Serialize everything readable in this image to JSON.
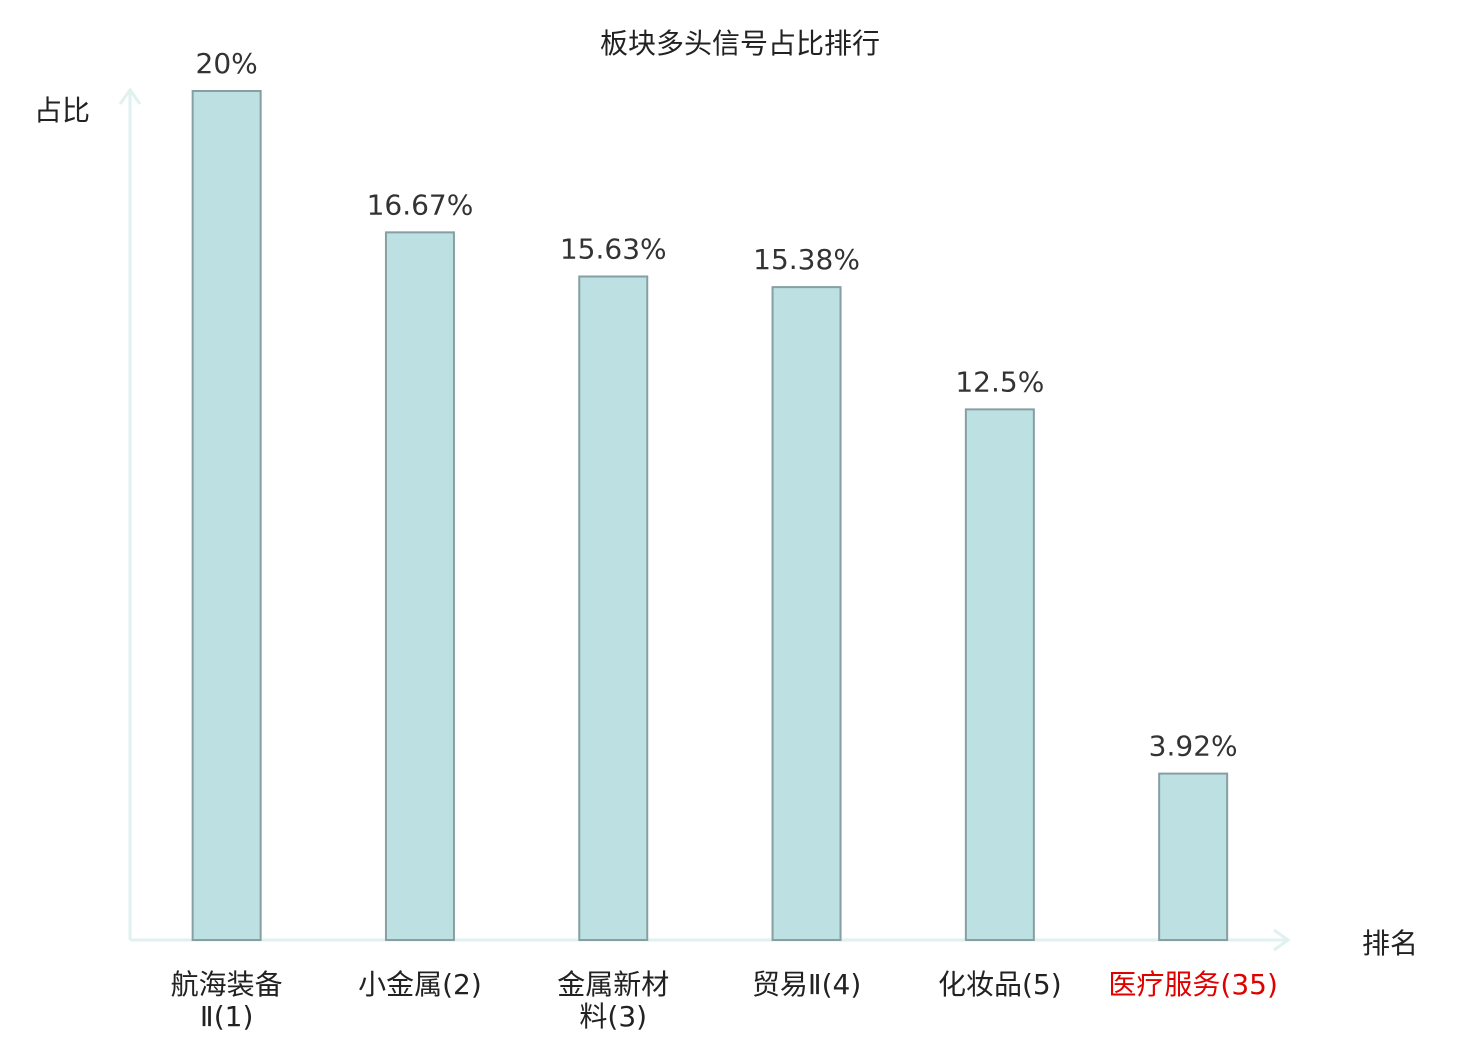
{
  "chart_data": {
    "type": "bar",
    "title": "板块多头信号占比排行",
    "ylabel": "占比",
    "xlabel": "排名",
    "categories": [
      [
        "航海装备",
        "Ⅱ(1)"
      ],
      [
        "小金属(2)"
      ],
      [
        "金属新材",
        "料(3)"
      ],
      [
        "贸易Ⅱ(4)"
      ],
      [
        "化妆品(5)"
      ],
      [
        "医疗服务(35)"
      ]
    ],
    "values": [
      20,
      16.67,
      15.63,
      15.38,
      12.5,
      3.92
    ],
    "value_labels": [
      "20%",
      "16.67%",
      "15.63%",
      "15.38%",
      "12.5%",
      "3.92%"
    ],
    "highlight_index": 5,
    "ylim": [
      0,
      20
    ],
    "grid": false,
    "legend": "none",
    "colors": {
      "bar_fill": "#bde0e2",
      "bar_stroke": "#869fa2",
      "axis": "#e0f2ef",
      "text": "#222222",
      "value_text": "#333333",
      "highlight_text": "#e00000"
    }
  }
}
